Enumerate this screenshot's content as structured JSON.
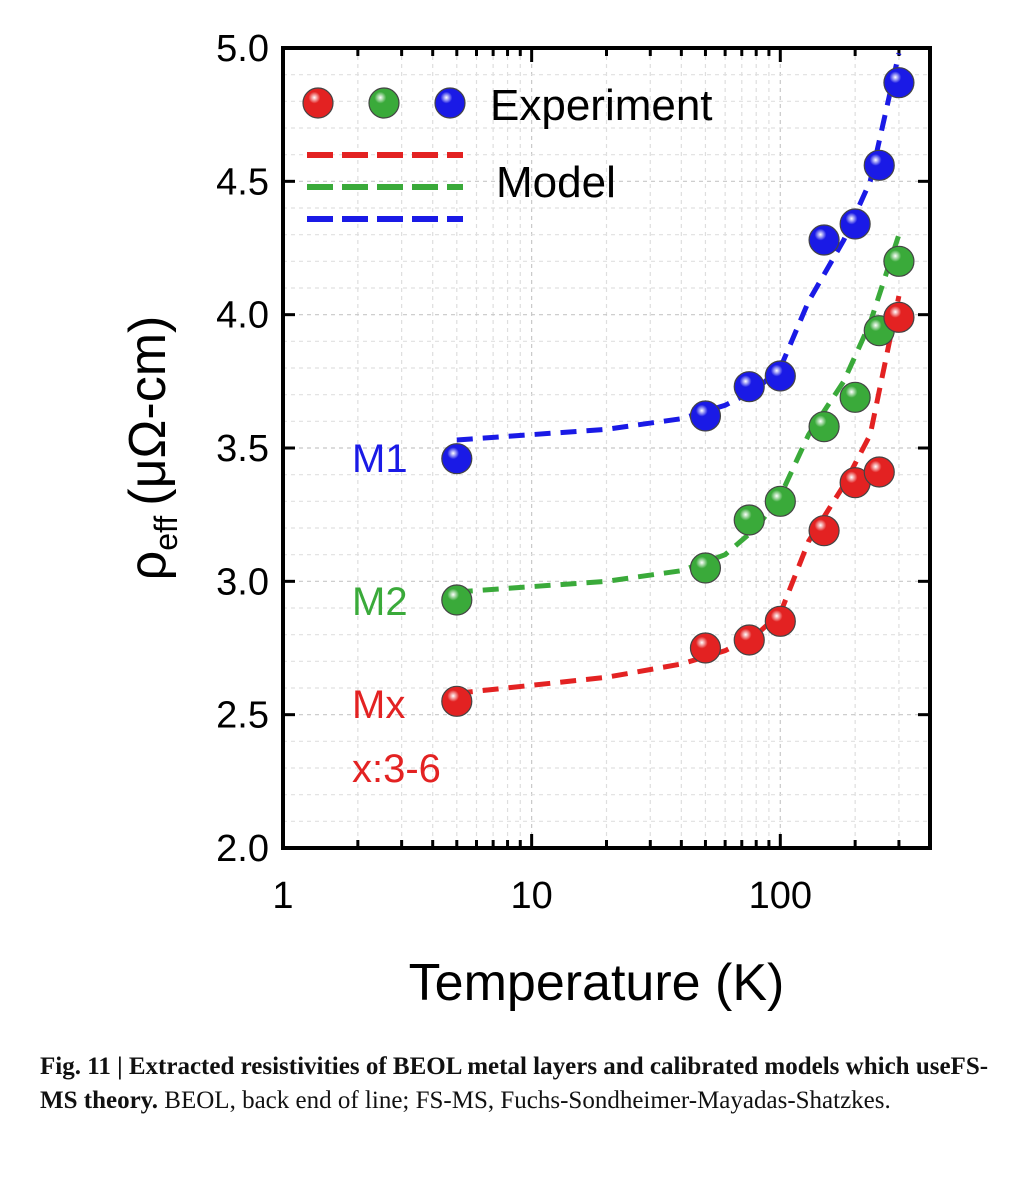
{
  "chart_data": {
    "type": "scatter",
    "xscale": "log",
    "xlim": [
      1,
      400
    ],
    "ylim": [
      2.0,
      5.0
    ],
    "xticks": [
      "1",
      "10",
      "100"
    ],
    "yticks": [
      "2.0",
      "2.5",
      "3.0",
      "3.5",
      "4.0",
      "4.5",
      "5.0"
    ],
    "ylabel_main": "ρ",
    "ylabel_sub": "eff",
    "ylabel_unit": "(μΩ-cm)",
    "xlabel": "Temperature (K)",
    "grid": true,
    "legend": {
      "experiment_label": "Experiment",
      "model_label": "Model",
      "placement": "top-left"
    },
    "series": [
      {
        "name": "M1",
        "label": "M1",
        "color": "#1a1ae6",
        "experiment": {
          "x": [
            5,
            50,
            75,
            100,
            150,
            200,
            250,
            300
          ],
          "y": [
            3.46,
            3.62,
            3.73,
            3.77,
            4.28,
            4.34,
            4.56,
            4.87
          ]
        },
        "model": {
          "x": [
            5,
            20,
            40,
            60,
            80,
            100,
            130,
            180,
            230,
            300
          ],
          "y": [
            3.53,
            3.57,
            3.61,
            3.66,
            3.72,
            3.8,
            4.05,
            4.28,
            4.5,
            4.98
          ]
        }
      },
      {
        "name": "M2",
        "label": "M2",
        "color": "#3aaa3a",
        "experiment": {
          "x": [
            5,
            50,
            75,
            100,
            150,
            200,
            250,
            300
          ],
          "y": [
            2.93,
            3.05,
            3.23,
            3.3,
            3.58,
            3.69,
            3.94,
            4.2
          ]
        },
        "model": {
          "x": [
            5,
            20,
            40,
            60,
            80,
            100,
            130,
            180,
            230,
            300
          ],
          "y": [
            2.96,
            3.0,
            3.04,
            3.1,
            3.2,
            3.32,
            3.55,
            3.75,
            3.97,
            4.3
          ]
        }
      },
      {
        "name": "Mx",
        "label": "Mx",
        "sublabel": "x:3-6",
        "color": "#e32222",
        "experiment": {
          "x": [
            5,
            50,
            75,
            100,
            150,
            200,
            250,
            300
          ],
          "y": [
            2.55,
            2.75,
            2.78,
            2.85,
            3.19,
            3.37,
            3.41,
            3.99
          ]
        },
        "model": {
          "x": [
            5,
            20,
            40,
            60,
            80,
            100,
            130,
            180,
            230,
            300
          ],
          "y": [
            2.58,
            2.64,
            2.69,
            2.74,
            2.8,
            2.88,
            3.15,
            3.36,
            3.55,
            4.07
          ]
        }
      }
    ]
  },
  "caption": {
    "prefix": "Fig. 11 | Extracted resistivities of BEOL metal layers and calibrated models which useFS-MS theory.",
    "body": " BEOL, back end of line; FS-MS, Fuchs-Sondheimer-Mayadas-Shatzkes."
  }
}
